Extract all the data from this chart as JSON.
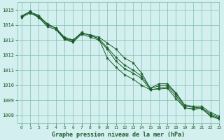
{
  "xlabel": "Graphe pression niveau de la mer (hPa)",
  "xlim": [
    -0.5,
    23
  ],
  "ylim": [
    1007.5,
    1015.5
  ],
  "yticks": [
    1008,
    1009,
    1010,
    1011,
    1012,
    1013,
    1014,
    1015
  ],
  "xticks": [
    0,
    1,
    2,
    3,
    4,
    5,
    6,
    7,
    8,
    9,
    10,
    11,
    12,
    13,
    14,
    15,
    16,
    17,
    18,
    19,
    20,
    21,
    22,
    23
  ],
  "background_color": "#d4efef",
  "grid_color": "#7abfaa",
  "line_color": "#1a5c28",
  "marker_color": "#1a5c28",
  "series": [
    [
      1014.6,
      1014.85,
      1014.65,
      1014.05,
      1013.8,
      1013.2,
      1013.0,
      1013.45,
      1013.35,
      1013.2,
      1012.8,
      1012.4,
      1011.8,
      1011.5,
      1010.8,
      1009.8,
      1010.1,
      1010.1,
      1009.5,
      1008.7,
      1008.6,
      1008.6,
      1008.2,
      1007.95
    ],
    [
      1014.55,
      1014.9,
      1014.55,
      1014.1,
      1013.75,
      1013.1,
      1012.9,
      1013.5,
      1013.3,
      1013.1,
      1012.5,
      1011.85,
      1011.35,
      1011.0,
      1010.6,
      1009.8,
      1009.95,
      1010.0,
      1009.45,
      1008.6,
      1008.55,
      1008.5,
      1008.1,
      1007.85
    ],
    [
      1014.5,
      1014.8,
      1014.5,
      1013.9,
      1013.7,
      1013.05,
      1012.85,
      1013.4,
      1013.2,
      1013.0,
      1012.4,
      1011.6,
      1011.1,
      1010.8,
      1010.45,
      1009.7,
      1009.8,
      1009.9,
      1009.3,
      1008.5,
      1008.45,
      1008.45,
      1008.0,
      1007.8
    ],
    [
      1014.6,
      1014.9,
      1014.5,
      1014.0,
      1013.8,
      1013.1,
      1013.0,
      1013.5,
      1013.3,
      1013.1,
      1011.8,
      1011.2,
      1010.7,
      1010.4,
      1010.0,
      1009.7,
      1009.75,
      1009.8,
      1009.1,
      1008.5,
      1008.4,
      1008.45,
      1007.95,
      1007.75
    ]
  ]
}
